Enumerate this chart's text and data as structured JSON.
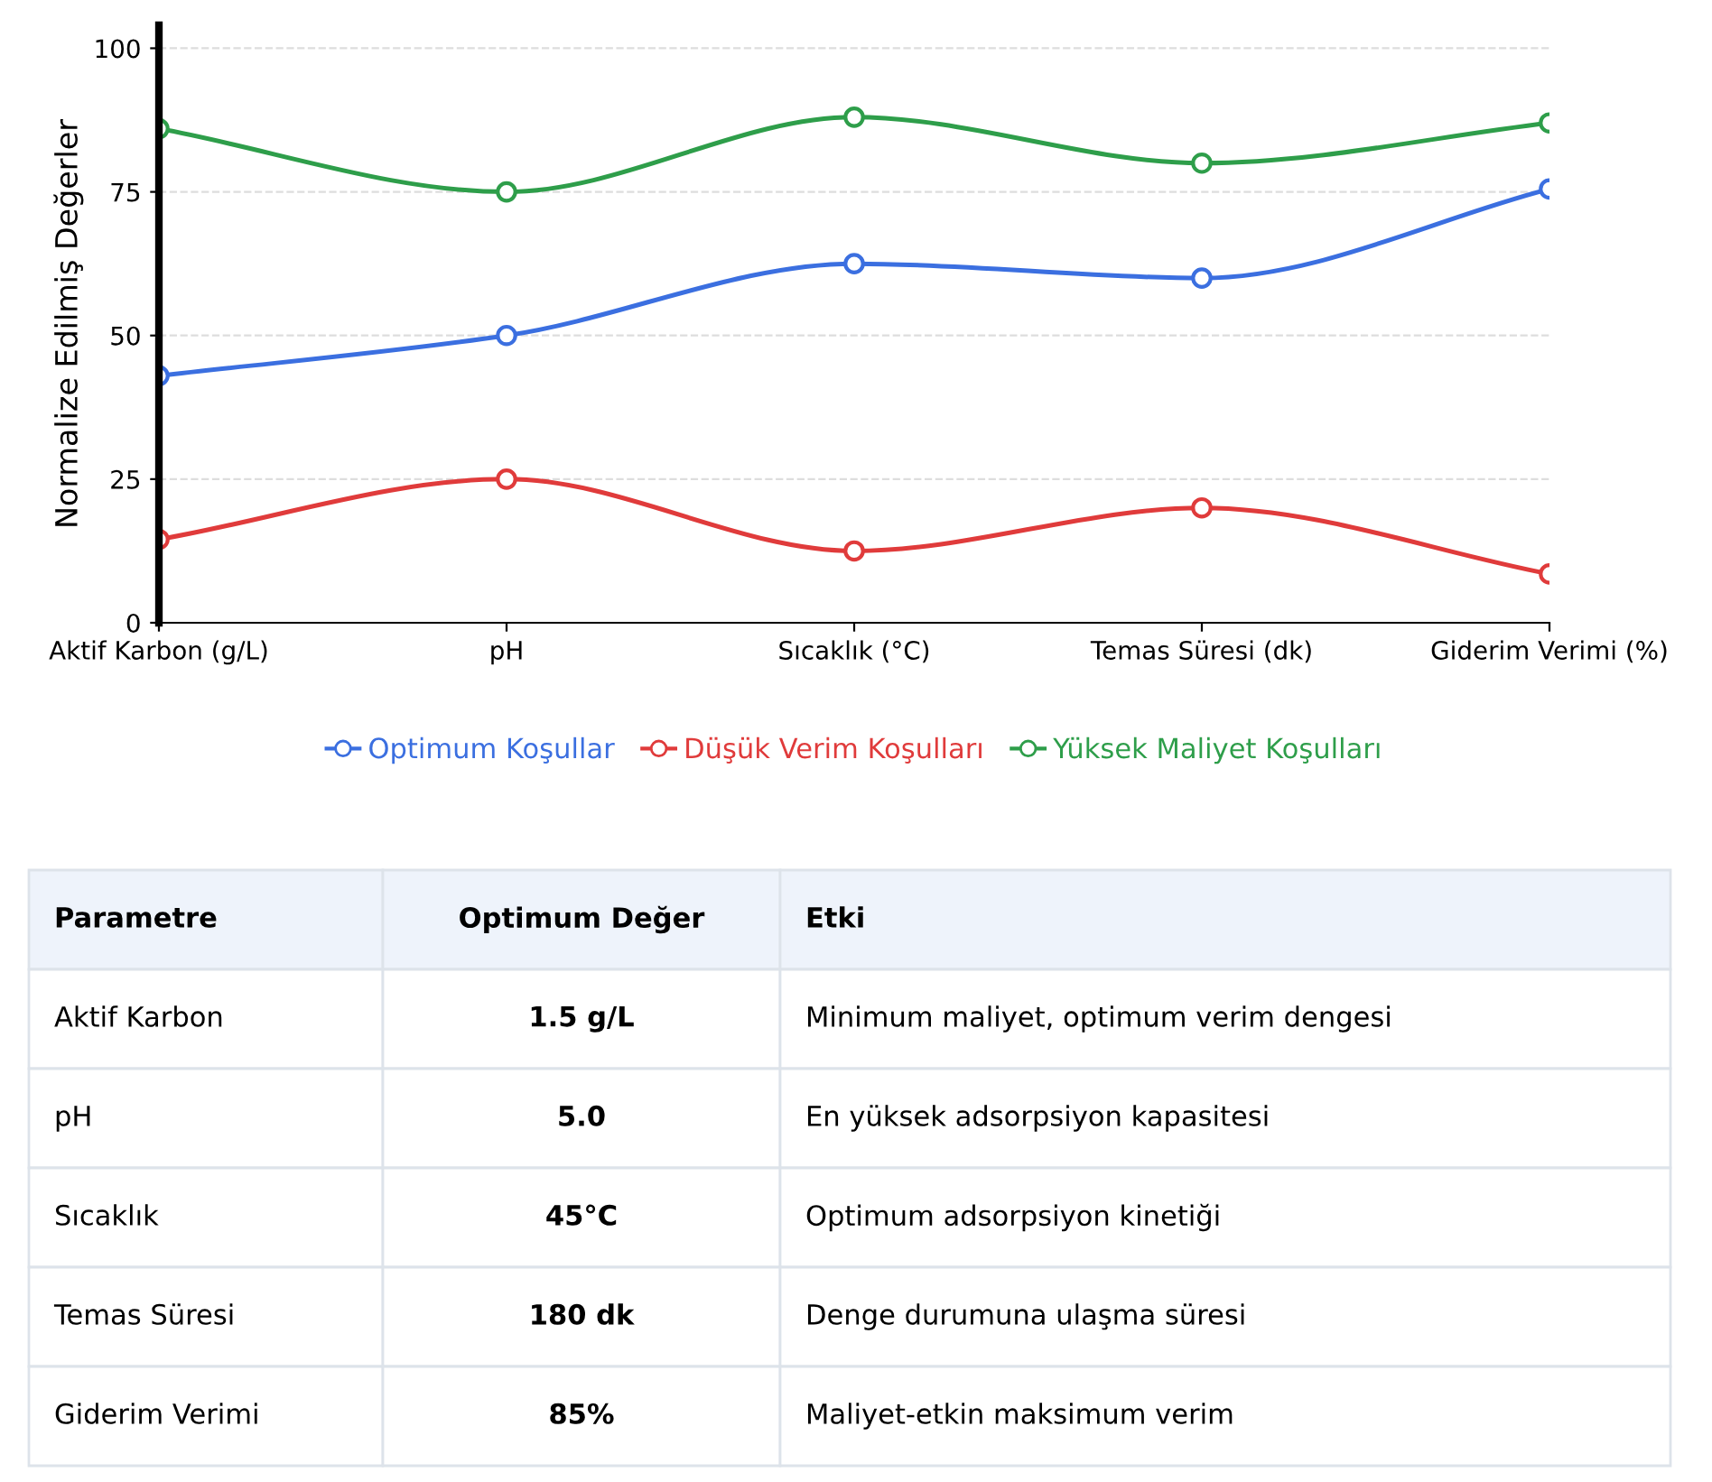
{
  "chart_data": {
    "type": "line",
    "ylabel": "Normalize Edilmiş Değerler",
    "categories": [
      "Aktif Karbon (g/L)",
      "pH",
      "Sıcaklık (°C)",
      "Temas Süresi (dk)",
      "Giderim Verimi (%)"
    ],
    "series": [
      {
        "name": "Optimum Koşullar",
        "color": "#3b6fe0",
        "values": [
          43,
          50,
          62.5,
          60,
          75.5
        ]
      },
      {
        "name": "Düşük Verim Koşulları",
        "color": "#e03b3b",
        "values": [
          14.5,
          25,
          12.5,
          20,
          8.5
        ]
      },
      {
        "name": "Yüksek Maliyet Koşulları",
        "color": "#2e9e4a",
        "values": [
          86,
          75,
          88,
          80,
          87
        ]
      }
    ],
    "ylim": [
      0,
      104
    ],
    "yticks": [
      0,
      25,
      50,
      75,
      100
    ],
    "grid": "y",
    "legend": "bottom",
    "marker": "circle",
    "line_style": "solid",
    "annotations": [
      "Parametre",
      "Optimum Değer",
      "Etki",
      "Aktif Karbon",
      "1.5 g/L",
      "Minimum maliyet, optimum verim dengesi",
      "pH",
      "5.0",
      "En yüksek adsorpsiyon kapasitesi",
      "Sıcaklık",
      "45°C",
      "Optimum adsorpsiyon kinetiği",
      "Temas Süresi",
      "180 dk",
      "Denge durumuna ulaşma süresi",
      "Giderim Verimi",
      "85%",
      "Maliyet-etkin maksimum verim"
    ]
  }
}
